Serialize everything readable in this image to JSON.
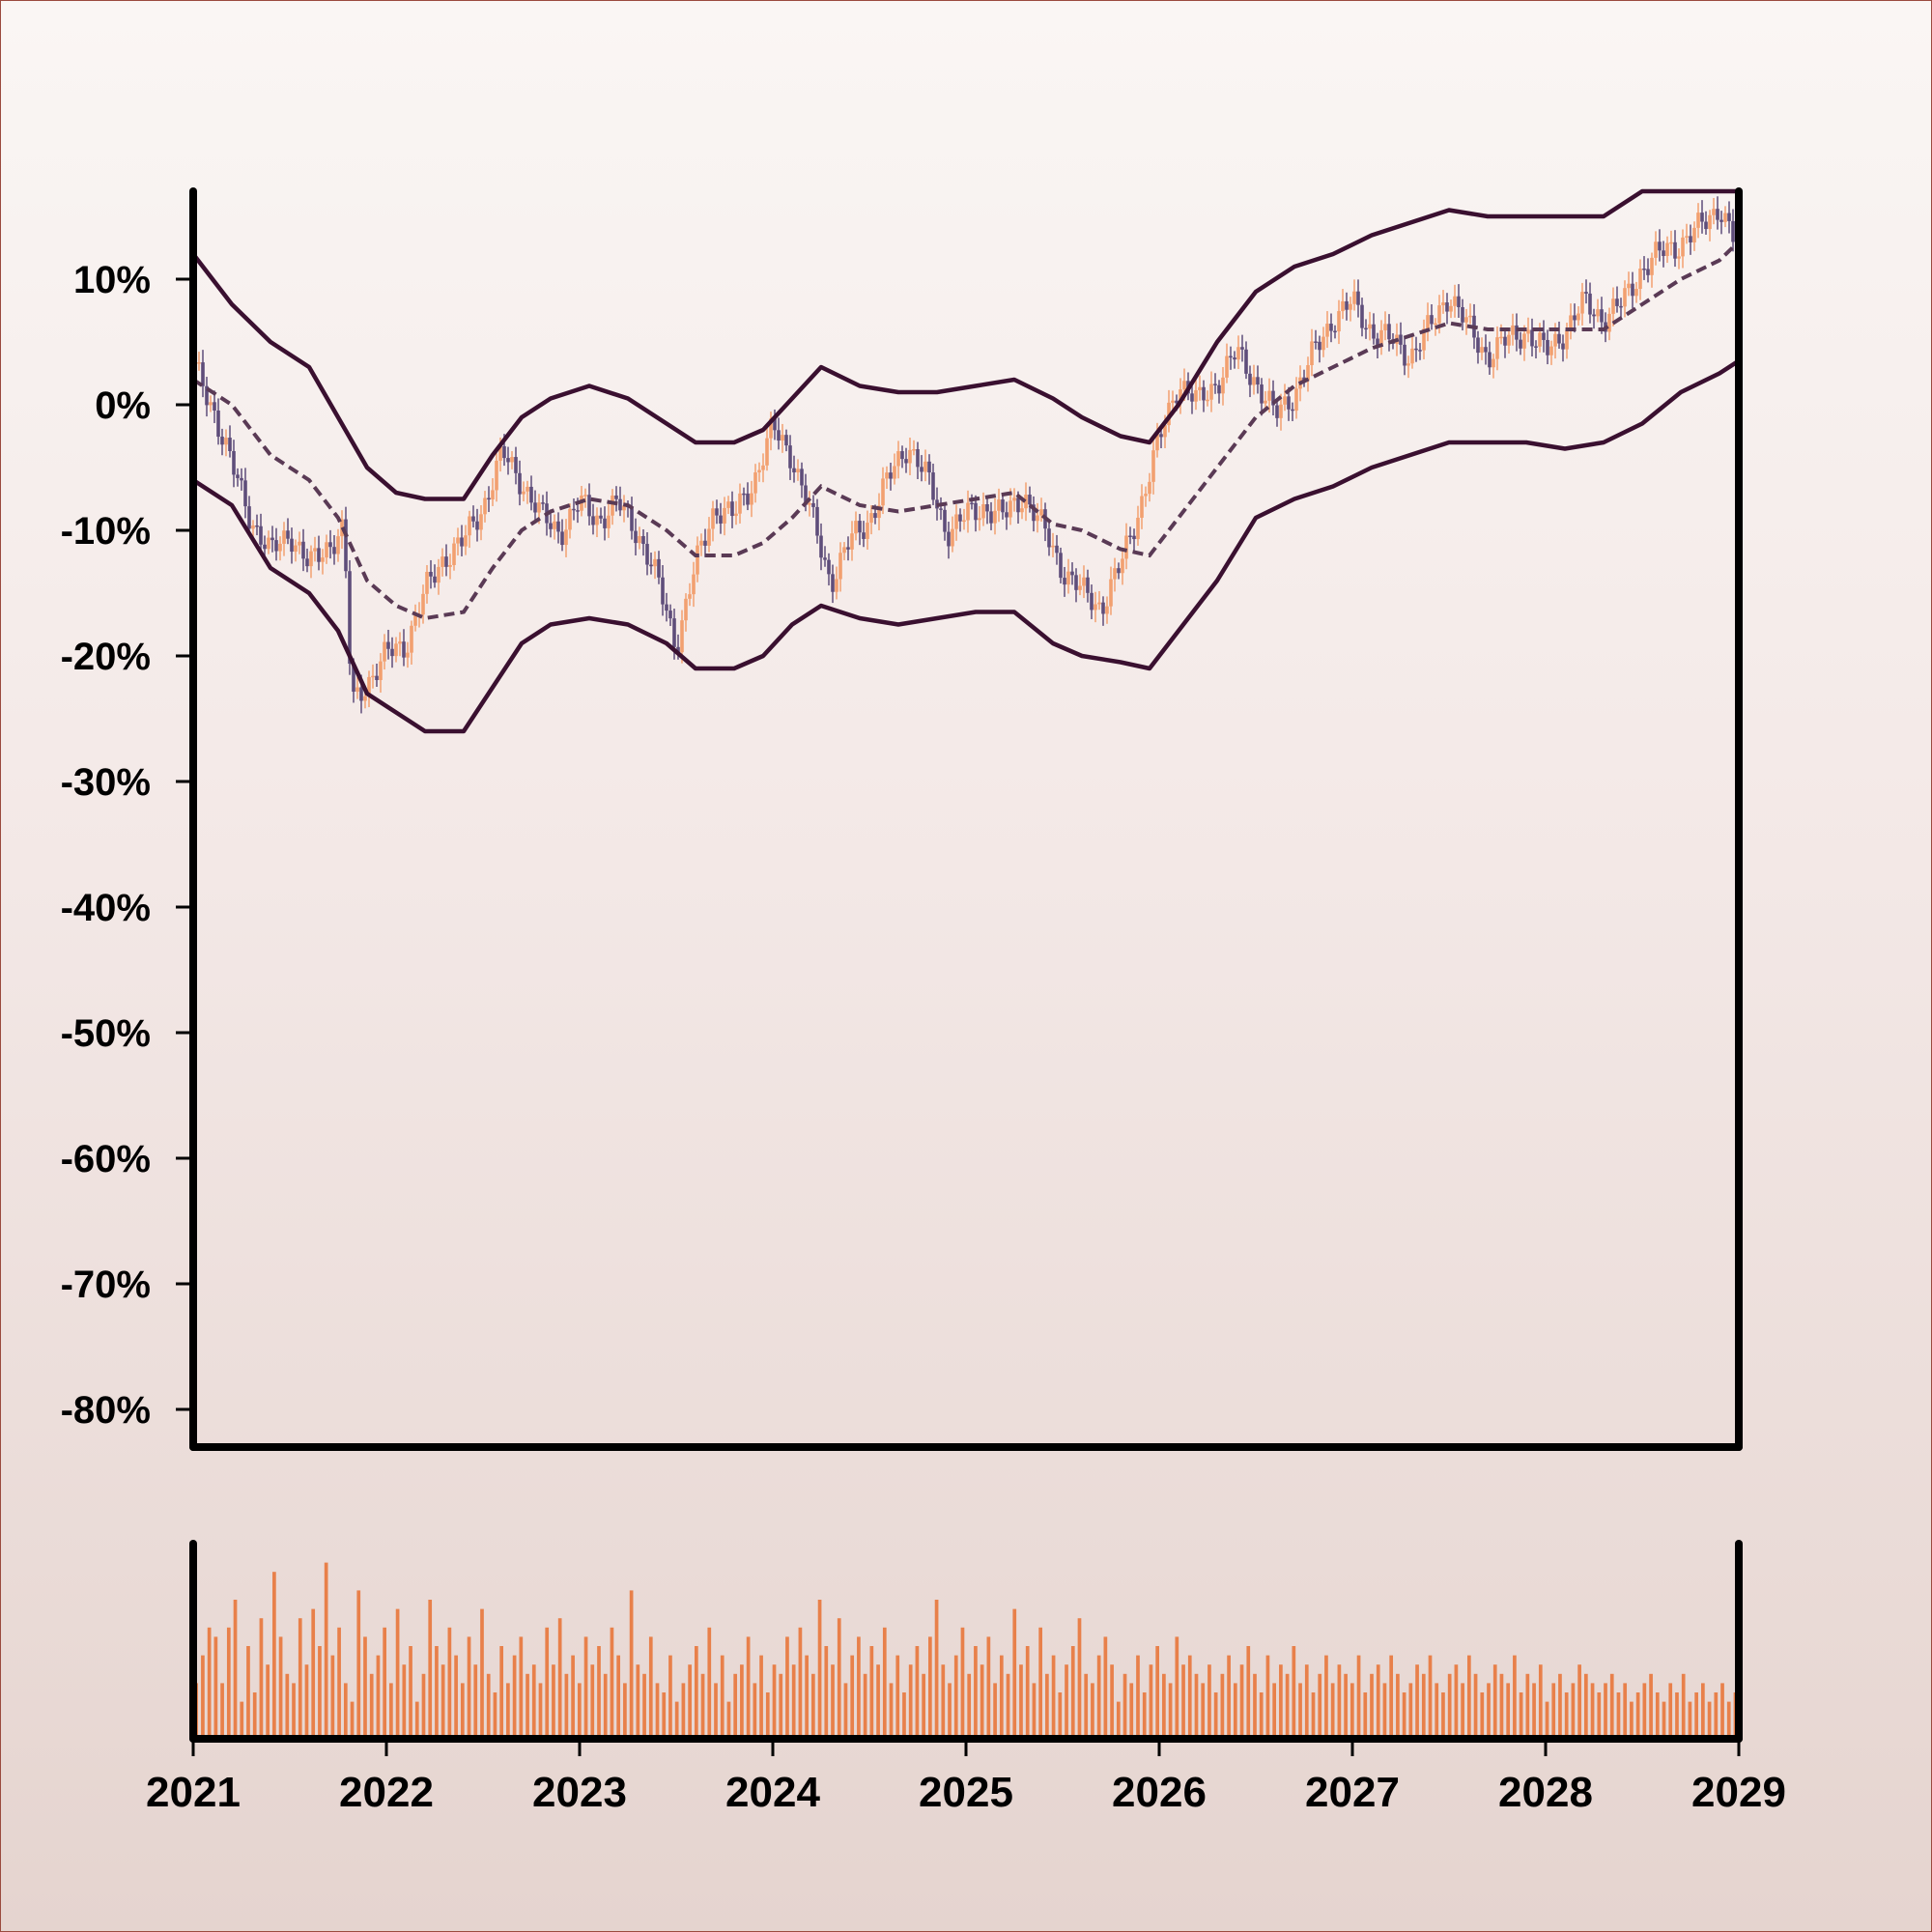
{
  "chart_data": {
    "type": "candlestick",
    "colors": {
      "up": "#f2a070",
      "down": "#5e4d7a",
      "band": "#3a1030",
      "middle": "#5a3a55",
      "volume": "#e8804a",
      "axis": "#000000"
    },
    "price_panel": {
      "ylim": [
        -0.83,
        0.17
      ],
      "yticks": [
        {
          "value": 0.1,
          "label": "10%"
        },
        {
          "value": 0.0,
          "label": "0%"
        },
        {
          "value": -0.1,
          "label": "-10%"
        },
        {
          "value": -0.2,
          "label": "-20%"
        },
        {
          "value": -0.3,
          "label": "-30%"
        },
        {
          "value": -0.4,
          "label": "-40%"
        },
        {
          "value": -0.5,
          "label": "-50%"
        },
        {
          "value": -0.6,
          "label": "-60%"
        },
        {
          "value": -0.7,
          "label": "-70%"
        },
        {
          "value": -0.8,
          "label": "-80%"
        }
      ],
      "close_series": [
        [
          2021.0,
          0.03
        ],
        [
          2021.1,
          0.0
        ],
        [
          2021.2,
          -0.05
        ],
        [
          2021.3,
          -0.09
        ],
        [
          2021.4,
          -0.12
        ],
        [
          2021.5,
          -0.1
        ],
        [
          2021.6,
          -0.13
        ],
        [
          2021.7,
          -0.11
        ],
        [
          2021.78,
          -0.1
        ],
        [
          2021.82,
          -0.24
        ],
        [
          2021.9,
          -0.22
        ],
        [
          2022.0,
          -0.2
        ],
        [
          2022.1,
          -0.19
        ],
        [
          2022.2,
          -0.15
        ],
        [
          2022.3,
          -0.12
        ],
        [
          2022.4,
          -0.11
        ],
        [
          2022.5,
          -0.08
        ],
        [
          2022.6,
          -0.04
        ],
        [
          2022.7,
          -0.06
        ],
        [
          2022.8,
          -0.09
        ],
        [
          2022.9,
          -0.1
        ],
        [
          2023.0,
          -0.08
        ],
        [
          2023.1,
          -0.09
        ],
        [
          2023.2,
          -0.08
        ],
        [
          2023.3,
          -0.1
        ],
        [
          2023.4,
          -0.14
        ],
        [
          2023.5,
          -0.19
        ],
        [
          2023.6,
          -0.13
        ],
        [
          2023.7,
          -0.08
        ],
        [
          2023.8,
          -0.09
        ],
        [
          2023.9,
          -0.06
        ],
        [
          2024.0,
          -0.02
        ],
        [
          2024.1,
          -0.04
        ],
        [
          2024.2,
          -0.09
        ],
        [
          2024.3,
          -0.14
        ],
        [
          2024.4,
          -0.11
        ],
        [
          2024.5,
          -0.09
        ],
        [
          2024.6,
          -0.06
        ],
        [
          2024.7,
          -0.03
        ],
        [
          2024.8,
          -0.06
        ],
        [
          2024.9,
          -0.1
        ],
        [
          2025.0,
          -0.09
        ],
        [
          2025.1,
          -0.08
        ],
        [
          2025.2,
          -0.09
        ],
        [
          2025.3,
          -0.07
        ],
        [
          2025.4,
          -0.1
        ],
        [
          2025.5,
          -0.13
        ],
        [
          2025.6,
          -0.15
        ],
        [
          2025.7,
          -0.16
        ],
        [
          2025.8,
          -0.13
        ],
        [
          2025.9,
          -0.08
        ],
        [
          2026.0,
          -0.03
        ],
        [
          2026.1,
          0.02
        ],
        [
          2026.2,
          0.0
        ],
        [
          2026.3,
          0.02
        ],
        [
          2026.4,
          0.04
        ],
        [
          2026.5,
          0.02
        ],
        [
          2026.6,
          -0.01
        ],
        [
          2026.7,
          0.01
        ],
        [
          2026.8,
          0.04
        ],
        [
          2026.9,
          0.07
        ],
        [
          2027.0,
          0.08
        ],
        [
          2027.1,
          0.06
        ],
        [
          2027.2,
          0.05
        ],
        [
          2027.3,
          0.04
        ],
        [
          2027.4,
          0.06
        ],
        [
          2027.5,
          0.09
        ],
        [
          2027.6,
          0.06
        ],
        [
          2027.7,
          0.04
        ],
        [
          2027.8,
          0.05
        ],
        [
          2027.9,
          0.06
        ],
        [
          2028.0,
          0.04
        ],
        [
          2028.1,
          0.06
        ],
        [
          2028.2,
          0.08
        ],
        [
          2028.3,
          0.07
        ],
        [
          2028.4,
          0.08
        ],
        [
          2028.5,
          0.11
        ],
        [
          2028.6,
          0.12
        ],
        [
          2028.7,
          0.13
        ],
        [
          2028.8,
          0.14
        ],
        [
          2028.9,
          0.16
        ],
        [
          2029.0,
          0.12
        ]
      ],
      "middle_band": [
        [
          2021.0,
          0.02
        ],
        [
          2021.2,
          0.0
        ],
        [
          2021.4,
          -0.04
        ],
        [
          2021.6,
          -0.06
        ],
        [
          2021.75,
          -0.09
        ],
        [
          2021.9,
          -0.14
        ],
        [
          2022.05,
          -0.16
        ],
        [
          2022.2,
          -0.17
        ],
        [
          2022.4,
          -0.165
        ],
        [
          2022.55,
          -0.13
        ],
        [
          2022.7,
          -0.1
        ],
        [
          2022.85,
          -0.085
        ],
        [
          2023.05,
          -0.075
        ],
        [
          2023.25,
          -0.08
        ],
        [
          2023.45,
          -0.1
        ],
        [
          2023.6,
          -0.12
        ],
        [
          2023.8,
          -0.12
        ],
        [
          2023.95,
          -0.11
        ],
        [
          2024.1,
          -0.09
        ],
        [
          2024.25,
          -0.065
        ],
        [
          2024.45,
          -0.08
        ],
        [
          2024.65,
          -0.085
        ],
        [
          2024.85,
          -0.08
        ],
        [
          2025.05,
          -0.075
        ],
        [
          2025.25,
          -0.07
        ],
        [
          2025.45,
          -0.095
        ],
        [
          2025.6,
          -0.1
        ],
        [
          2025.8,
          -0.115
        ],
        [
          2025.95,
          -0.12
        ],
        [
          2026.1,
          -0.09
        ],
        [
          2026.3,
          -0.05
        ],
        [
          2026.5,
          -0.01
        ],
        [
          2026.7,
          0.015
        ],
        [
          2026.9,
          0.03
        ],
        [
          2027.1,
          0.045
        ],
        [
          2027.3,
          0.055
        ],
        [
          2027.5,
          0.065
        ],
        [
          2027.7,
          0.06
        ],
        [
          2027.9,
          0.06
        ],
        [
          2028.1,
          0.06
        ],
        [
          2028.3,
          0.06
        ],
        [
          2028.5,
          0.08
        ],
        [
          2028.7,
          0.1
        ],
        [
          2028.9,
          0.115
        ],
        [
          2029.0,
          0.13
        ]
      ],
      "upper_band": [
        [
          2021.0,
          0.12
        ],
        [
          2021.2,
          0.08
        ],
        [
          2021.4,
          0.05
        ],
        [
          2021.6,
          0.03
        ],
        [
          2021.75,
          -0.01
        ],
        [
          2021.9,
          -0.05
        ],
        [
          2022.05,
          -0.07
        ],
        [
          2022.2,
          -0.075
        ],
        [
          2022.4,
          -0.075
        ],
        [
          2022.55,
          -0.04
        ],
        [
          2022.7,
          -0.01
        ],
        [
          2022.85,
          0.005
        ],
        [
          2023.05,
          0.015
        ],
        [
          2023.25,
          0.005
        ],
        [
          2023.45,
          -0.015
        ],
        [
          2023.6,
          -0.03
        ],
        [
          2023.8,
          -0.03
        ],
        [
          2023.95,
          -0.02
        ],
        [
          2024.1,
          0.005
        ],
        [
          2024.25,
          0.03
        ],
        [
          2024.45,
          0.015
        ],
        [
          2024.65,
          0.01
        ],
        [
          2024.85,
          0.01
        ],
        [
          2025.05,
          0.015
        ],
        [
          2025.25,
          0.02
        ],
        [
          2025.45,
          0.005
        ],
        [
          2025.6,
          -0.01
        ],
        [
          2025.8,
          -0.025
        ],
        [
          2025.95,
          -0.03
        ],
        [
          2026.1,
          0.0
        ],
        [
          2026.3,
          0.05
        ],
        [
          2026.5,
          0.09
        ],
        [
          2026.7,
          0.11
        ],
        [
          2026.9,
          0.12
        ],
        [
          2027.1,
          0.135
        ],
        [
          2027.3,
          0.145
        ],
        [
          2027.5,
          0.155
        ],
        [
          2027.7,
          0.15
        ],
        [
          2027.9,
          0.15
        ],
        [
          2028.1,
          0.15
        ],
        [
          2028.3,
          0.15
        ],
        [
          2028.5,
          0.17
        ],
        [
          2028.7,
          0.17
        ],
        [
          2028.9,
          0.17
        ],
        [
          2029.0,
          0.17
        ]
      ],
      "lower_band": [
        [
          2021.0,
          -0.06
        ],
        [
          2021.2,
          -0.08
        ],
        [
          2021.4,
          -0.13
        ],
        [
          2021.6,
          -0.15
        ],
        [
          2021.75,
          -0.18
        ],
        [
          2021.9,
          -0.23
        ],
        [
          2022.05,
          -0.245
        ],
        [
          2022.2,
          -0.26
        ],
        [
          2022.4,
          -0.26
        ],
        [
          2022.55,
          -0.225
        ],
        [
          2022.7,
          -0.19
        ],
        [
          2022.85,
          -0.175
        ],
        [
          2023.05,
          -0.17
        ],
        [
          2023.25,
          -0.175
        ],
        [
          2023.45,
          -0.19
        ],
        [
          2023.6,
          -0.21
        ],
        [
          2023.8,
          -0.21
        ],
        [
          2023.95,
          -0.2
        ],
        [
          2024.1,
          -0.175
        ],
        [
          2024.25,
          -0.16
        ],
        [
          2024.45,
          -0.17
        ],
        [
          2024.65,
          -0.175
        ],
        [
          2024.85,
          -0.17
        ],
        [
          2025.05,
          -0.165
        ],
        [
          2025.25,
          -0.165
        ],
        [
          2025.45,
          -0.19
        ],
        [
          2025.6,
          -0.2
        ],
        [
          2025.8,
          -0.205
        ],
        [
          2025.95,
          -0.21
        ],
        [
          2026.1,
          -0.18
        ],
        [
          2026.3,
          -0.14
        ],
        [
          2026.5,
          -0.09
        ],
        [
          2026.7,
          -0.075
        ],
        [
          2026.9,
          -0.065
        ],
        [
          2027.1,
          -0.05
        ],
        [
          2027.3,
          -0.04
        ],
        [
          2027.5,
          -0.03
        ],
        [
          2027.7,
          -0.03
        ],
        [
          2027.9,
          -0.03
        ],
        [
          2028.1,
          -0.035
        ],
        [
          2028.3,
          -0.03
        ],
        [
          2028.5,
          -0.015
        ],
        [
          2028.7,
          0.01
        ],
        [
          2028.9,
          0.025
        ],
        [
          2029.0,
          0.035
        ]
      ]
    },
    "volume_panel": {
      "values": [
        0.3,
        0.45,
        0.6,
        0.55,
        0.3,
        0.6,
        0.75,
        0.2,
        0.5,
        0.25,
        0.65,
        0.4,
        0.9,
        0.55,
        0.35,
        0.3,
        0.65,
        0.4,
        0.7,
        0.5,
        0.95,
        0.45,
        0.6,
        0.3,
        0.2,
        0.8,
        0.55,
        0.35,
        0.45,
        0.6,
        0.3,
        0.7,
        0.4,
        0.5,
        0.2,
        0.35,
        0.75,
        0.5,
        0.4,
        0.6,
        0.45,
        0.3,
        0.55,
        0.4,
        0.7,
        0.35,
        0.25,
        0.5,
        0.3,
        0.45,
        0.55,
        0.35,
        0.4,
        0.3,
        0.6,
        0.4,
        0.65,
        0.35,
        0.45,
        0.3,
        0.55,
        0.4,
        0.5,
        0.35,
        0.6,
        0.45,
        0.3,
        0.8,
        0.4,
        0.35,
        0.55,
        0.3,
        0.25,
        0.45,
        0.2,
        0.3,
        0.4,
        0.5,
        0.35,
        0.6,
        0.3,
        0.45,
        0.2,
        0.35,
        0.4,
        0.55,
        0.3,
        0.45,
        0.25,
        0.4,
        0.35,
        0.55,
        0.4,
        0.6,
        0.45,
        0.35,
        0.75,
        0.5,
        0.4,
        0.65,
        0.3,
        0.45,
        0.55,
        0.35,
        0.5,
        0.4,
        0.6,
        0.3,
        0.45,
        0.25,
        0.4,
        0.5,
        0.35,
        0.55,
        0.75,
        0.4,
        0.3,
        0.45,
        0.6,
        0.35,
        0.5,
        0.4,
        0.55,
        0.3,
        0.45,
        0.35,
        0.7,
        0.4,
        0.5,
        0.3,
        0.6,
        0.35,
        0.45,
        0.25,
        0.4,
        0.5,
        0.65,
        0.35,
        0.3,
        0.45,
        0.55,
        0.4,
        0.2,
        0.35,
        0.3,
        0.45,
        0.25,
        0.4,
        0.5,
        0.35,
        0.3,
        0.55,
        0.4,
        0.45,
        0.35,
        0.3,
        0.4,
        0.25,
        0.35,
        0.45,
        0.3,
        0.4,
        0.5,
        0.35,
        0.25,
        0.45,
        0.3,
        0.4,
        0.35,
        0.5,
        0.3,
        0.4,
        0.25,
        0.35,
        0.45,
        0.3,
        0.4,
        0.35,
        0.3,
        0.45,
        0.25,
        0.35,
        0.4,
        0.3,
        0.45,
        0.35,
        0.25,
        0.3,
        0.4,
        0.35,
        0.45,
        0.3,
        0.25,
        0.35,
        0.4,
        0.3,
        0.45,
        0.35,
        0.25,
        0.3,
        0.4,
        0.35,
        0.3,
        0.45,
        0.25,
        0.35,
        0.3,
        0.4,
        0.2,
        0.3,
        0.35,
        0.25,
        0.3,
        0.4,
        0.35,
        0.3,
        0.25,
        0.3,
        0.35,
        0.25,
        0.3,
        0.2,
        0.25,
        0.3,
        0.35,
        0.25,
        0.2,
        0.3,
        0.25,
        0.35,
        0.2,
        0.25,
        0.3,
        0.2,
        0.25,
        0.3,
        0.2,
        0.25
      ]
    },
    "x_axis": {
      "xlim": [
        2021,
        2029
      ],
      "ticks": [
        {
          "value": 2021,
          "label": "2021"
        },
        {
          "value": 2022,
          "label": "2022"
        },
        {
          "value": 2023,
          "label": "2023"
        },
        {
          "value": 2024,
          "label": "2024"
        },
        {
          "value": 2025,
          "label": "2025"
        },
        {
          "value": 2026,
          "label": "2026"
        },
        {
          "value": 2027,
          "label": "2027"
        },
        {
          "value": 2028,
          "label": "2028"
        },
        {
          "value": 2029,
          "label": "2029"
        }
      ]
    }
  }
}
